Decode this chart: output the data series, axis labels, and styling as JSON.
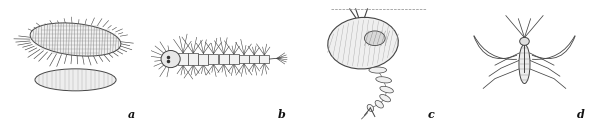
{
  "figure_width": 6.0,
  "figure_height": 1.23,
  "dpi": 100,
  "panel_labels": [
    "a",
    "b",
    "c",
    "d"
  ],
  "background_color": "#ffffff",
  "border_color": "#999999",
  "label_color": "#111111",
  "label_fontsize": 8,
  "line_color": "#444444",
  "line_color2": "#666666",
  "line_width": 0.6
}
